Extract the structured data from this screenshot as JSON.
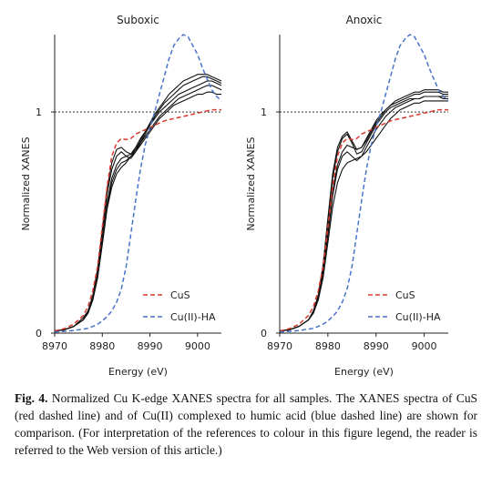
{
  "figure": {
    "caption_label": "Fig. 4.",
    "caption_text": "Normalized Cu K-edge XANES spectra for all samples. The XANES spectra of CuS (red dashed line) and of Cu(II) complexed to humic acid (blue dashed line) are shown for comparison. (For interpretation of the references to colour in this figure legend, the reader is referred to the Web version of this article.)"
  },
  "colors": {
    "cus": "#d93a2b",
    "cuha": "#4a72c9",
    "samples": "#111111",
    "reference_line": "#111111"
  },
  "chart_data": [
    {
      "type": "line",
      "title": "Suboxic",
      "xlabel": "Energy (eV)",
      "ylabel": "Normalized XANES",
      "xlim": [
        8970,
        9005
      ],
      "ylim": [
        0,
        1.35
      ],
      "x_ticks": [
        "8970",
        "8980",
        "8990",
        "9000"
      ],
      "y_ticks": [
        "0",
        "1"
      ],
      "reference_line_y": 1,
      "legend": {
        "position": "lower-right",
        "entries": [
          "CuS",
          "Cu(II)-HA"
        ]
      },
      "x": [
        8970,
        8972,
        8974,
        8976,
        8977,
        8978,
        8979,
        8980,
        8981,
        8982,
        8983,
        8984,
        8985,
        8986,
        8987,
        8988,
        8989,
        8990,
        8991,
        8992,
        8993,
        8994,
        8995,
        8996,
        8997,
        8998,
        8999,
        9000,
        9001,
        9002,
        9003,
        9004,
        9005
      ],
      "series": [
        {
          "name": "CuS",
          "style": "dashed",
          "color": "#d93a2b",
          "values": [
            0.01,
            0.02,
            0.04,
            0.08,
            0.12,
            0.19,
            0.3,
            0.48,
            0.66,
            0.8,
            0.86,
            0.88,
            0.875,
            0.88,
            0.9,
            0.91,
            0.92,
            0.93,
            0.94,
            0.95,
            0.96,
            0.965,
            0.97,
            0.975,
            0.98,
            0.985,
            0.99,
            0.995,
            1.0,
            1.005,
            1.01,
            1.01,
            1.01
          ]
        },
        {
          "name": "Cu(II)-HA",
          "style": "dashed",
          "color": "#4a72c9",
          "values": [
            0.005,
            0.008,
            0.012,
            0.018,
            0.022,
            0.03,
            0.04,
            0.055,
            0.075,
            0.1,
            0.14,
            0.2,
            0.3,
            0.45,
            0.6,
            0.74,
            0.85,
            0.93,
            1.0,
            1.08,
            1.16,
            1.24,
            1.3,
            1.33,
            1.35,
            1.34,
            1.3,
            1.26,
            1.2,
            1.15,
            1.1,
            1.07,
            1.05
          ]
        },
        {
          "values": [
            0.01,
            0.015,
            0.03,
            0.06,
            0.09,
            0.15,
            0.25,
            0.4,
            0.56,
            0.66,
            0.72,
            0.75,
            0.77,
            0.8,
            0.83,
            0.86,
            0.89,
            0.92,
            0.95,
            0.98,
            1.0,
            1.02,
            1.04,
            1.06,
            1.07,
            1.08,
            1.09,
            1.1,
            1.11,
            1.12,
            1.12,
            1.11,
            1.1
          ],
          "color": "#111111"
        },
        {
          "values": [
            0.01,
            0.015,
            0.03,
            0.06,
            0.09,
            0.15,
            0.26,
            0.42,
            0.59,
            0.7,
            0.76,
            0.79,
            0.8,
            0.81,
            0.84,
            0.88,
            0.91,
            0.94,
            0.97,
            1.0,
            1.02,
            1.04,
            1.06,
            1.08,
            1.09,
            1.1,
            1.11,
            1.12,
            1.13,
            1.14,
            1.14,
            1.13,
            1.12
          ],
          "color": "#111111"
        },
        {
          "values": [
            0.01,
            0.015,
            0.03,
            0.06,
            0.1,
            0.16,
            0.28,
            0.45,
            0.63,
            0.74,
            0.8,
            0.82,
            0.8,
            0.79,
            0.82,
            0.86,
            0.9,
            0.94,
            0.98,
            1.01,
            1.04,
            1.06,
            1.08,
            1.1,
            1.12,
            1.13,
            1.14,
            1.15,
            1.16,
            1.16,
            1.15,
            1.14,
            1.13
          ],
          "color": "#111111"
        },
        {
          "values": [
            0.01,
            0.015,
            0.03,
            0.07,
            0.1,
            0.17,
            0.29,
            0.47,
            0.65,
            0.77,
            0.83,
            0.84,
            0.82,
            0.81,
            0.83,
            0.87,
            0.91,
            0.95,
            0.99,
            1.02,
            1.05,
            1.08,
            1.1,
            1.12,
            1.14,
            1.15,
            1.16,
            1.17,
            1.17,
            1.17,
            1.16,
            1.15,
            1.14
          ],
          "color": "#111111"
        },
        {
          "values": [
            0.01,
            0.015,
            0.03,
            0.06,
            0.09,
            0.15,
            0.25,
            0.41,
            0.57,
            0.68,
            0.74,
            0.77,
            0.78,
            0.8,
            0.82,
            0.85,
            0.88,
            0.91,
            0.94,
            0.97,
            0.99,
            1.01,
            1.03,
            1.04,
            1.05,
            1.06,
            1.07,
            1.08,
            1.08,
            1.09,
            1.09,
            1.08,
            1.08
          ],
          "color": "#111111"
        }
      ]
    },
    {
      "type": "line",
      "title": "Anoxic",
      "xlabel": "Energy (eV)",
      "ylabel": "Normalized XANES",
      "xlim": [
        8970,
        9005
      ],
      "ylim": [
        0,
        1.35
      ],
      "x_ticks": [
        "8970",
        "8980",
        "8990",
        "9000"
      ],
      "y_ticks": [
        "0",
        "1"
      ],
      "reference_line_y": 1,
      "legend": {
        "position": "lower-right",
        "entries": [
          "CuS",
          "Cu(II)-HA"
        ]
      },
      "x": [
        8970,
        8972,
        8974,
        8976,
        8977,
        8978,
        8979,
        8980,
        8981,
        8982,
        8983,
        8984,
        8985,
        8986,
        8987,
        8988,
        8989,
        8990,
        8991,
        8992,
        8993,
        8994,
        8995,
        8996,
        8997,
        8998,
        8999,
        9000,
        9001,
        9002,
        9003,
        9004,
        9005
      ],
      "series": [
        {
          "name": "CuS",
          "style": "dashed",
          "color": "#d93a2b",
          "values": [
            0.01,
            0.02,
            0.04,
            0.08,
            0.12,
            0.19,
            0.3,
            0.48,
            0.66,
            0.8,
            0.86,
            0.88,
            0.875,
            0.88,
            0.9,
            0.91,
            0.92,
            0.93,
            0.94,
            0.95,
            0.96,
            0.965,
            0.97,
            0.975,
            0.98,
            0.985,
            0.99,
            0.995,
            1.0,
            1.005,
            1.01,
            1.01,
            1.01
          ]
        },
        {
          "name": "Cu(II)-HA",
          "style": "dashed",
          "color": "#4a72c9",
          "values": [
            0.005,
            0.008,
            0.012,
            0.018,
            0.022,
            0.03,
            0.04,
            0.055,
            0.075,
            0.1,
            0.14,
            0.2,
            0.3,
            0.45,
            0.6,
            0.74,
            0.85,
            0.93,
            1.0,
            1.08,
            1.16,
            1.24,
            1.3,
            1.33,
            1.35,
            1.34,
            1.3,
            1.26,
            1.2,
            1.15,
            1.1,
            1.07,
            1.05
          ]
        },
        {
          "values": [
            0.01,
            0.015,
            0.03,
            0.06,
            0.1,
            0.17,
            0.3,
            0.5,
            0.7,
            0.82,
            0.88,
            0.9,
            0.86,
            0.81,
            0.82,
            0.86,
            0.9,
            0.94,
            0.97,
            1.0,
            1.02,
            1.03,
            1.04,
            1.05,
            1.06,
            1.06,
            1.06,
            1.07,
            1.07,
            1.07,
            1.07,
            1.06,
            1.06
          ],
          "color": "#111111"
        },
        {
          "values": [
            0.01,
            0.015,
            0.03,
            0.06,
            0.1,
            0.17,
            0.31,
            0.52,
            0.72,
            0.84,
            0.89,
            0.91,
            0.87,
            0.83,
            0.84,
            0.88,
            0.92,
            0.96,
            0.99,
            1.01,
            1.03,
            1.04,
            1.05,
            1.06,
            1.07,
            1.08,
            1.08,
            1.09,
            1.09,
            1.09,
            1.09,
            1.08,
            1.08
          ],
          "color": "#111111"
        },
        {
          "values": [
            0.01,
            0.015,
            0.03,
            0.06,
            0.1,
            0.16,
            0.28,
            0.46,
            0.64,
            0.76,
            0.82,
            0.85,
            0.84,
            0.83,
            0.84,
            0.87,
            0.91,
            0.95,
            0.98,
            1.01,
            1.03,
            1.05,
            1.06,
            1.07,
            1.08,
            1.09,
            1.09,
            1.1,
            1.1,
            1.1,
            1.1,
            1.09,
            1.09
          ],
          "color": "#111111"
        },
        {
          "values": [
            0.01,
            0.015,
            0.03,
            0.06,
            0.09,
            0.15,
            0.25,
            0.41,
            0.57,
            0.68,
            0.74,
            0.77,
            0.78,
            0.79,
            0.8,
            0.82,
            0.85,
            0.88,
            0.91,
            0.94,
            0.97,
            0.99,
            1.01,
            1.02,
            1.03,
            1.04,
            1.04,
            1.05,
            1.05,
            1.05,
            1.05,
            1.05,
            1.05
          ],
          "color": "#111111"
        },
        {
          "values": [
            0.01,
            0.015,
            0.03,
            0.06,
            0.09,
            0.16,
            0.27,
            0.44,
            0.62,
            0.74,
            0.8,
            0.82,
            0.8,
            0.78,
            0.8,
            0.84,
            0.88,
            0.92,
            0.95,
            0.98,
            1.0,
            1.02,
            1.03,
            1.04,
            1.05,
            1.06,
            1.06,
            1.07,
            1.07,
            1.07,
            1.07,
            1.07,
            1.07
          ],
          "color": "#111111"
        }
      ]
    }
  ]
}
